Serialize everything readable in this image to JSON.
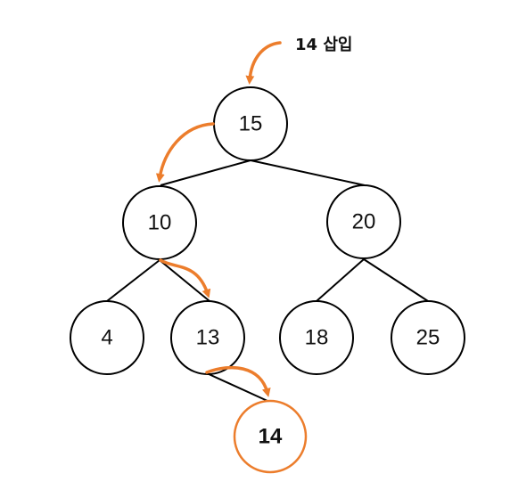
{
  "caption": "14 삽입",
  "accent_color": "#ec7d2c",
  "nodes": {
    "n15": "15",
    "n10": "10",
    "n20": "20",
    "n4": "4",
    "n13": "13",
    "n18": "18",
    "n25": "25",
    "n14": "14"
  },
  "inserted_node": "14"
}
